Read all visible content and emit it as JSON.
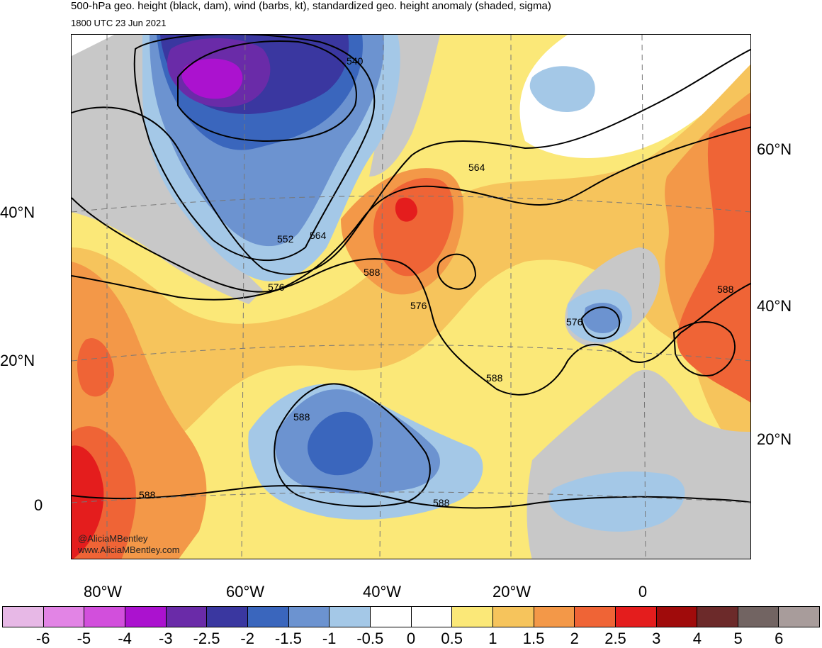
{
  "header": {
    "title": "500-hPa geo. height (black, dam), wind (barbs, kt), standardized geo. height anomaly (shaded, sigma)",
    "valid_time": "1800 UTC 23 Jun 2021"
  },
  "axes": {
    "lat_left": [
      "40°N",
      "20°N",
      "0"
    ],
    "lat_right": [
      "60°N",
      "40°N",
      "20°N"
    ],
    "lon_bottom": [
      "80°W",
      "60°W",
      "40°W",
      "20°W",
      "0"
    ]
  },
  "contour_labels": [
    "540",
    "552",
    "564",
    "564",
    "576",
    "588",
    "576",
    "576",
    "588",
    "588",
    "588",
    "588",
    "588"
  ],
  "credit": {
    "handle": "@AliciaMBentley",
    "site": "www.AliciaMBentley.com"
  },
  "colorbar": {
    "ticks": [
      "-6",
      "-5",
      "-4",
      "-3",
      "-2.5",
      "-2",
      "-1.5",
      "-1",
      "-0.5",
      "0",
      "0.5",
      "1",
      "1.5",
      "2",
      "2.5",
      "3",
      "4",
      "5",
      "6"
    ],
    "colors": [
      "#e7b8e6",
      "#e284e5",
      "#d24fdc",
      "#ab12cf",
      "#6a2ba8",
      "#3a37a0",
      "#3a66bd",
      "#6c93d0",
      "#a4c8e7",
      "#ffffff",
      "#ffffff",
      "#fbe878",
      "#f6c45c",
      "#f39848",
      "#ef6436",
      "#e41d1d",
      "#a00b0b",
      "#6c2a2a",
      "#726462",
      "#a89c9b"
    ]
  },
  "palette": {
    "land_gray": "#c8c8c8",
    "coast": "#555555",
    "contour": "#000000"
  }
}
